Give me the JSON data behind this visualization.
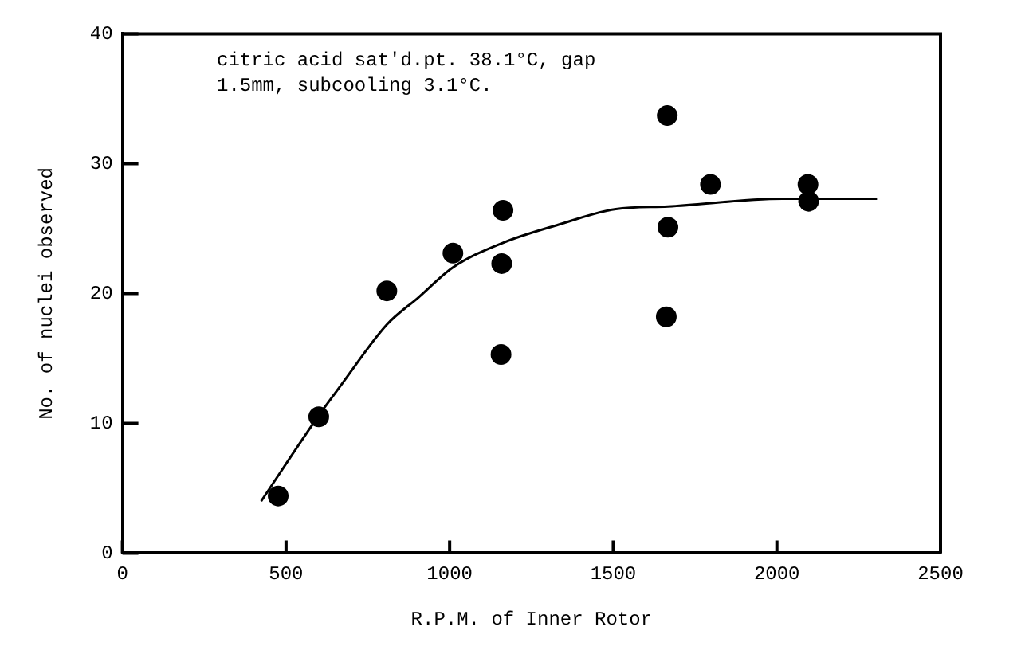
{
  "chart_data": {
    "type": "scatter",
    "xlabel": "R.P.M. of Inner Rotor",
    "ylabel": "No. of nuclei observed",
    "annotations": [
      "citric acid sat'd.pt. 38.1°C, gap 1.5mm, subcooling 3.1°C."
    ],
    "xlim": [
      0,
      2500
    ],
    "xticks": [
      0,
      500,
      1000,
      1500,
      2000,
      2500
    ],
    "ylim": [
      0,
      40
    ],
    "yticks": [
      0,
      10,
      20,
      30,
      40
    ],
    "grid": false,
    "legend": false,
    "series": [
      {
        "color": "#000000",
        "marker": "circle",
        "x": [
          476,
          600,
          808,
          1010,
          1163,
          1159,
          1157,
          1665,
          1667,
          1662,
          1797,
          2095,
          2097
        ],
        "values": [
          4.4,
          10.5,
          20.2,
          23.1,
          26.4,
          22.3,
          15.3,
          33.7,
          25.1,
          18.2,
          28.4,
          28.4,
          27.1
        ]
      },
      {
        "type": "line",
        "color": "#000000",
        "marker": "none",
        "line_style": "solid",
        "x": [
          424,
          600,
          667,
          808,
          905,
          1010,
          1163,
          1333,
          1508,
          1667,
          2016,
          2306
        ],
        "values": [
          4.0,
          10.6,
          12.9,
          17.6,
          19.7,
          22.0,
          23.9,
          25.3,
          26.5,
          26.7,
          27.3,
          27.3
        ]
      }
    ]
  }
}
